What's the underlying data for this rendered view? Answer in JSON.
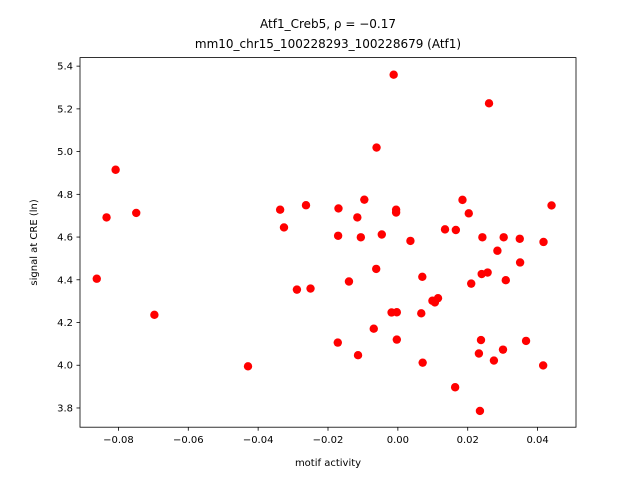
{
  "chart_data": {
    "type": "scatter",
    "title_line1": "Atf1_Creb5, ρ = −0.17",
    "title_line2": "mm10_chr15_100228293_100228679 (Atf1)",
    "xlabel": "motif activity",
    "ylabel": "signal at CRE (ln)",
    "xlim": [
      -0.091,
      0.051
    ],
    "ylim": [
      3.71,
      5.44
    ],
    "xticks": [
      -0.08,
      -0.06,
      -0.04,
      -0.02,
      0.0,
      0.02,
      0.04
    ],
    "xtick_labels": [
      "−0.08",
      "−0.06",
      "−0.04",
      "−0.02",
      "0.00",
      "0.02",
      "0.04"
    ],
    "yticks": [
      3.8,
      4.0,
      4.2,
      4.4,
      4.6,
      4.8,
      5.0,
      5.2,
      5.4
    ],
    "ytick_labels": [
      "3.8",
      "4.0",
      "4.2",
      "4.4",
      "4.6",
      "4.8",
      "5.0",
      "5.2",
      "5.4"
    ],
    "grid": false,
    "marker_color": "#ff0000",
    "points": [
      {
        "x": -0.0862,
        "y": 4.405
      },
      {
        "x": -0.0834,
        "y": 4.692
      },
      {
        "x": -0.0808,
        "y": 4.915
      },
      {
        "x": -0.0749,
        "y": 4.713
      },
      {
        "x": -0.0697,
        "y": 4.236
      },
      {
        "x": -0.0429,
        "y": 3.995
      },
      {
        "x": -0.0337,
        "y": 4.728
      },
      {
        "x": -0.0326,
        "y": 4.645
      },
      {
        "x": -0.0289,
        "y": 4.354
      },
      {
        "x": -0.0263,
        "y": 4.749
      },
      {
        "x": -0.025,
        "y": 4.359
      },
      {
        "x": -0.0172,
        "y": 4.106
      },
      {
        "x": -0.0171,
        "y": 4.606
      },
      {
        "x": -0.017,
        "y": 4.734
      },
      {
        "x": -0.014,
        "y": 4.392
      },
      {
        "x": -0.0114,
        "y": 4.047
      },
      {
        "x": -0.0116,
        "y": 4.692
      },
      {
        "x": -0.0106,
        "y": 4.599
      },
      {
        "x": -0.0096,
        "y": 4.775
      },
      {
        "x": -0.0069,
        "y": 4.171
      },
      {
        "x": -0.0061,
        "y": 5.019
      },
      {
        "x": -0.0062,
        "y": 4.451
      },
      {
        "x": -0.0046,
        "y": 4.612
      },
      {
        "x": -0.0018,
        "y": 4.247
      },
      {
        "x": -0.0012,
        "y": 5.36
      },
      {
        "x": -0.0005,
        "y": 4.728
      },
      {
        "x": -0.0005,
        "y": 4.715
      },
      {
        "x": -0.0003,
        "y": 4.12
      },
      {
        "x": -0.0003,
        "y": 4.248
      },
      {
        "x": 0.0036,
        "y": 4.582
      },
      {
        "x": 0.0067,
        "y": 4.243
      },
      {
        "x": 0.007,
        "y": 4.414
      },
      {
        "x": 0.0071,
        "y": 4.012
      },
      {
        "x": 0.0099,
        "y": 4.302
      },
      {
        "x": 0.0106,
        "y": 4.294
      },
      {
        "x": 0.0115,
        "y": 4.314
      },
      {
        "x": 0.0135,
        "y": 4.636
      },
      {
        "x": 0.0164,
        "y": 3.897
      },
      {
        "x": 0.0166,
        "y": 4.633
      },
      {
        "x": 0.0185,
        "y": 4.774
      },
      {
        "x": 0.0203,
        "y": 4.711
      },
      {
        "x": 0.021,
        "y": 4.382
      },
      {
        "x": 0.0232,
        "y": 4.055
      },
      {
        "x": 0.0235,
        "y": 3.786
      },
      {
        "x": 0.0238,
        "y": 4.118
      },
      {
        "x": 0.024,
        "y": 4.427
      },
      {
        "x": 0.0242,
        "y": 4.599
      },
      {
        "x": 0.0257,
        "y": 4.434
      },
      {
        "x": 0.0261,
        "y": 5.226
      },
      {
        "x": 0.0275,
        "y": 4.022
      },
      {
        "x": 0.0285,
        "y": 4.536
      },
      {
        "x": 0.0301,
        "y": 4.073
      },
      {
        "x": 0.0303,
        "y": 4.599
      },
      {
        "x": 0.0309,
        "y": 4.398
      },
      {
        "x": 0.0349,
        "y": 4.592
      },
      {
        "x": 0.035,
        "y": 4.481
      },
      {
        "x": 0.0367,
        "y": 4.114
      },
      {
        "x": 0.0416,
        "y": 3.999
      },
      {
        "x": 0.0417,
        "y": 4.577
      },
      {
        "x": 0.044,
        "y": 4.748
      }
    ]
  }
}
